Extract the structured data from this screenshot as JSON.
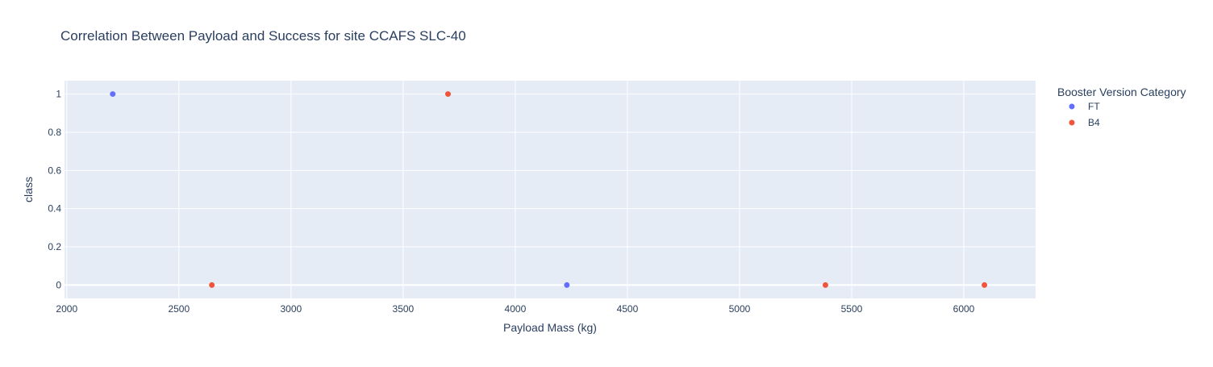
{
  "chart_data": {
    "type": "scatter",
    "title": "Correlation Between Payload and Success for site CCAFS SLC-40",
    "xlabel": "Payload Mass (kg)",
    "ylabel": "class",
    "xlim": [
      1990,
      6320
    ],
    "ylim": [
      -0.07,
      1.07
    ],
    "x_ticks": [
      2000,
      2500,
      3000,
      3500,
      4000,
      4500,
      5000,
      5500,
      6000
    ],
    "y_ticks": [
      0,
      0.2,
      0.4,
      0.6,
      0.8,
      1
    ],
    "y_tick_labels": [
      "0",
      "0.2",
      "0.4",
      "0.6",
      "0.8",
      "1"
    ],
    "grid": true,
    "legend": {
      "title": "Booster Version Category",
      "placement": "top-right, outside plot"
    },
    "series": [
      {
        "name": "FT",
        "color": "#636efa",
        "x": [
          2205,
          4230
        ],
        "y": [
          1,
          0
        ]
      },
      {
        "name": "B4",
        "color": "#ef553b",
        "x": [
          2647,
          3700,
          5383,
          6092
        ],
        "y": [
          0,
          1,
          0,
          0
        ]
      }
    ],
    "colors": {
      "plot_bg": "#e5ecf6",
      "grid": "#ffffff",
      "text": "#2a3f5f"
    }
  }
}
